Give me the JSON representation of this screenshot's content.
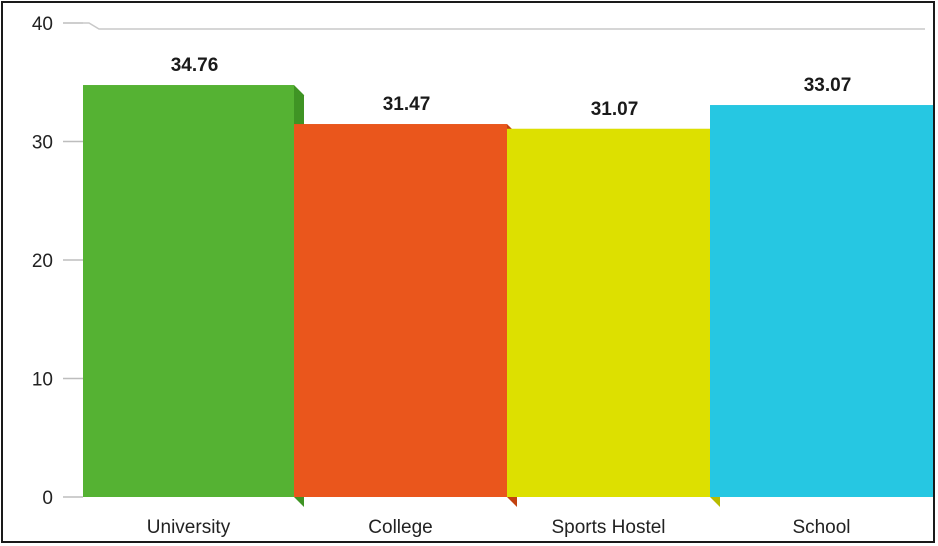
{
  "chart_data": {
    "type": "bar",
    "categories": [
      "University",
      "College",
      "Sports Hostel",
      "School"
    ],
    "values": [
      34.76,
      31.47,
      31.07,
      33.07
    ],
    "data_labels": [
      "34.76",
      "31.47",
      "31.07",
      "33.07"
    ],
    "colors": [
      "#55b233",
      "#ea561c",
      "#dde000",
      "#26c7e2"
    ],
    "side_colors": [
      "#3f9424",
      "#c2410f",
      "#b8bb00",
      "#15a8c4"
    ],
    "ylim": [
      0,
      40
    ],
    "yticks": [
      0,
      10,
      20,
      30,
      40
    ],
    "ytick_labels": [
      "0",
      "10",
      "20",
      "30",
      "40"
    ],
    "grid": false,
    "legend": "none",
    "style": "3d"
  }
}
